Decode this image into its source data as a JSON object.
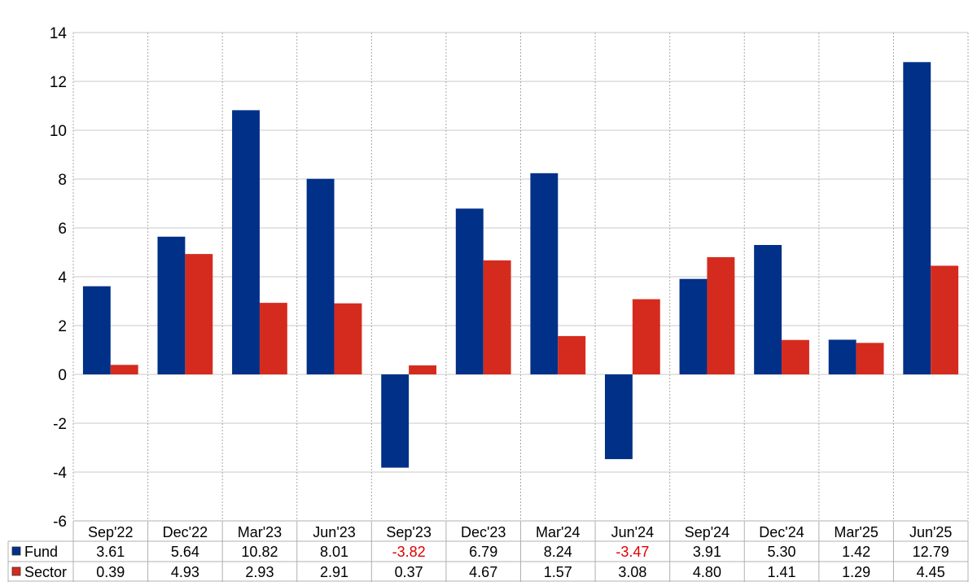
{
  "chart_data": {
    "type": "bar",
    "title": "",
    "xlabel": "",
    "ylabel": "",
    "ylim": [
      -6,
      14
    ],
    "yticks": [
      14,
      12,
      10,
      8,
      6,
      4,
      2,
      0,
      -2,
      -4,
      -6
    ],
    "grid": true,
    "legend_placement": "bottom-left table",
    "categories": [
      "Sep'22",
      "Dec'22",
      "Mar'23",
      "Jun'23",
      "Sep'23",
      "Dec'23",
      "Mar'24",
      "Jun'24",
      "Sep'24",
      "Dec'24",
      "Mar'25",
      "Jun'25"
    ],
    "series": [
      {
        "name": "Fund",
        "color": "#003087",
        "values": [
          3.61,
          5.64,
          10.82,
          8.01,
          -3.82,
          6.79,
          8.24,
          -3.47,
          3.91,
          5.3,
          1.42,
          12.79
        ],
        "labels": [
          "3.61",
          "5.64",
          "10.82",
          "8.01",
          "-3.82",
          "6.79",
          "8.24",
          "-3.47",
          "3.91",
          "5.30",
          "1.42",
          "12.79"
        ]
      },
      {
        "name": "Sector",
        "color": "#d52b1e",
        "values": [
          0.39,
          4.93,
          2.93,
          2.91,
          0.37,
          4.67,
          1.57,
          3.08,
          4.8,
          1.41,
          1.29,
          4.45
        ],
        "labels": [
          "0.39",
          "4.93",
          "2.93",
          "2.91",
          "0.37",
          "4.67",
          "1.57",
          "3.08",
          "4.80",
          "1.41",
          "1.29",
          "4.45"
        ]
      }
    ],
    "negative_label_color": "#e00000"
  }
}
